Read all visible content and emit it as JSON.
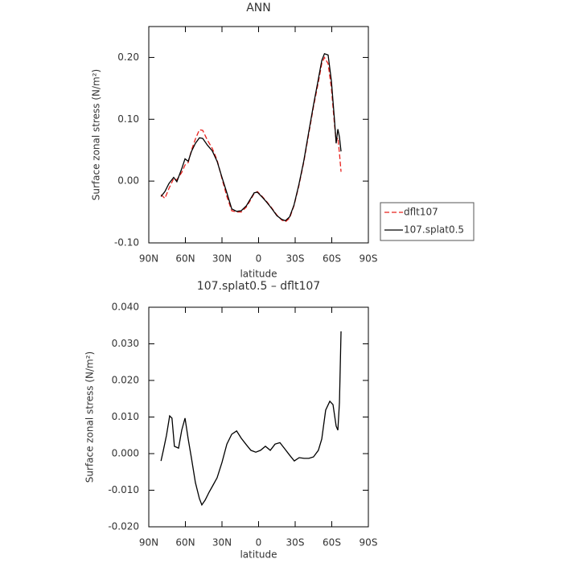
{
  "chart_data": [
    {
      "type": "line",
      "title": "ANN",
      "xlabel": "latitude",
      "ylabel": "Surface zonal stress (N/m²)",
      "x": [
        80,
        76.8,
        73.5,
        69.6,
        67,
        63,
        60.3,
        57.7,
        55,
        51.8,
        48.5,
        45.8,
        41.9,
        38,
        34,
        30,
        26,
        22,
        18,
        14.2,
        10,
        7,
        3.6,
        1,
        -3,
        -7,
        -11,
        -15,
        -19,
        -22,
        -25.4,
        -29,
        -33,
        -37,
        -41,
        -45,
        -49,
        -51.8,
        -54,
        -57,
        -59.7,
        -62.3,
        -63.6,
        -65,
        -66.3,
        -67.6
      ],
      "series": [
        {
          "name": "dflt107",
          "color": "#e8201c",
          "style": "dashed",
          "values": [
            -0.022,
            -0.028,
            -0.012,
            0.004,
            0.002,
            0.014,
            0.026,
            0.03,
            0.05,
            0.068,
            0.083,
            0.082,
            0.066,
            0.053,
            0.034,
            0.004,
            -0.025,
            -0.048,
            -0.05,
            -0.05,
            -0.042,
            -0.032,
            -0.02,
            -0.017,
            -0.025,
            -0.034,
            -0.044,
            -0.055,
            -0.063,
            -0.066,
            -0.06,
            -0.04,
            -0.008,
            0.03,
            0.075,
            0.12,
            0.16,
            0.19,
            0.2,
            0.19,
            0.15,
            0.09,
            0.065,
            0.07,
            0.045,
            0.015
          ]
        },
        {
          "name": "107.splat0.5",
          "color": "#000000",
          "style": "solid",
          "values": [
            -0.025,
            -0.017,
            -0.004,
            0.006,
            -0.001,
            0.02,
            0.036,
            0.032,
            0.048,
            0.061,
            0.07,
            0.069,
            0.058,
            0.049,
            0.032,
            0.006,
            -0.019,
            -0.045,
            -0.049,
            -0.048,
            -0.04,
            -0.03,
            -0.019,
            -0.018,
            -0.026,
            -0.035,
            -0.045,
            -0.056,
            -0.062,
            -0.064,
            -0.058,
            -0.039,
            -0.006,
            0.032,
            0.078,
            0.123,
            0.165,
            0.195,
            0.206,
            0.204,
            0.162,
            0.097,
            0.061,
            0.084,
            0.071,
            0.048
          ]
        }
      ],
      "xlim": [
        90,
        -90
      ],
      "xticks": [
        {
          "value": 90,
          "label": "90N"
        },
        {
          "value": 60,
          "label": "60N"
        },
        {
          "value": 30,
          "label": "30N"
        },
        0,
        {
          "value": -30,
          "label": "30S"
        },
        {
          "value": -60,
          "label": "60S"
        },
        {
          "value": -90,
          "label": "90S"
        }
      ],
      "ylim": [
        -0.1,
        0.25
      ],
      "yticks": [
        {
          "value": -0.1,
          "label": "-0.10"
        },
        {
          "value": 0,
          "label": "0.00"
        },
        {
          "value": 0.1,
          "label": "0.10"
        },
        {
          "value": 0.2,
          "label": "0.20"
        }
      ],
      "legend": "outside-right"
    },
    {
      "type": "line",
      "title": "107.splat0.5 – dflt107",
      "xlabel": "latitude",
      "ylabel": "Surface zonal stress (N/m²)",
      "x": [
        80,
        78,
        75.5,
        72.9,
        71,
        69,
        65.6,
        63,
        60.3,
        57.7,
        55,
        51.8,
        48.5,
        46.5,
        43.8,
        40.5,
        37.3,
        34,
        30,
        26,
        22,
        18,
        14.2,
        10,
        6.3,
        2.3,
        -1.6,
        -5.6,
        -9.6,
        -13.5,
        -17.5,
        -21.5,
        -25.4,
        -29.3,
        -33.3,
        -37.3,
        -41.2,
        -45,
        -49,
        -51.8,
        -55,
        -58.4,
        -61,
        -63.6,
        -65,
        -66.3,
        -67.6
      ],
      "values": [
        -0.002,
        0.001,
        0.005,
        0.0103,
        0.0097,
        0.002,
        0.0015,
        0.0064,
        0.0097,
        0.004,
        -0.0013,
        -0.0079,
        -0.0123,
        -0.014,
        -0.0127,
        -0.0105,
        -0.0086,
        -0.0066,
        -0.0024,
        0.0026,
        0.0053,
        0.0062,
        0.0042,
        0.0024,
        0.0009,
        0.0004,
        0.0009,
        0.002,
        0.0009,
        0.0026,
        0.003,
        0.0013,
        -0.0004,
        -0.002,
        -0.0011,
        -0.0013,
        -0.0013,
        -0.0009,
        0.0009,
        0.004,
        0.0119,
        0.0143,
        0.0134,
        0.0075,
        0.0064,
        0.014,
        0.0334
      ],
      "color": "#000000",
      "xlim": [
        90,
        -90
      ],
      "xticks": [
        {
          "value": 90,
          "label": "90N"
        },
        {
          "value": 60,
          "label": "60N"
        },
        {
          "value": 30,
          "label": "30N"
        },
        0,
        {
          "value": -30,
          "label": "30S"
        },
        {
          "value": -60,
          "label": "60S"
        },
        {
          "value": -90,
          "label": "90S"
        }
      ],
      "ylim": [
        -0.02,
        0.04
      ],
      "yticks": [
        {
          "value": -0.02,
          "label": "-0.020"
        },
        {
          "value": -0.01,
          "label": "-0.010"
        },
        {
          "value": 0,
          "label": "0.000"
        },
        {
          "value": 0.01,
          "label": "0.010"
        },
        {
          "value": 0.02,
          "label": "0.020"
        },
        {
          "value": 0.03,
          "label": "0.030"
        },
        {
          "value": 0.04,
          "label": "0.040"
        }
      ]
    }
  ]
}
